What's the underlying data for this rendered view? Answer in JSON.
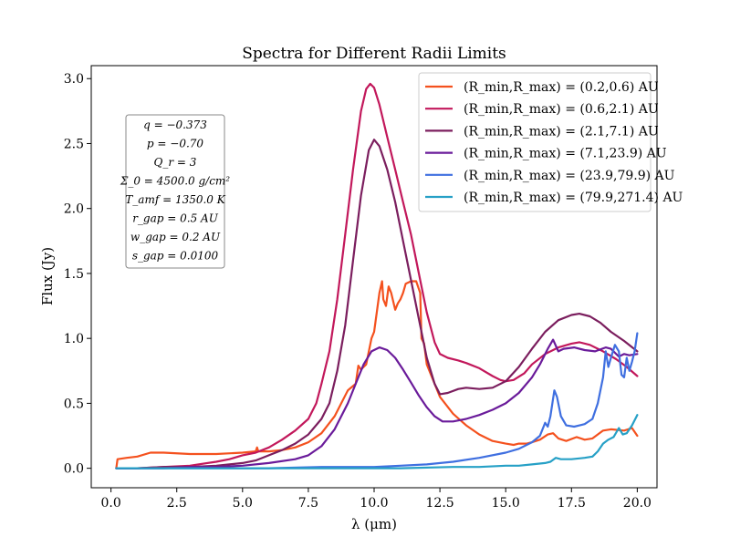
{
  "chart_data": {
    "type": "line",
    "title": "Spectra for Different Radii Limits",
    "xlabel": "λ (μm)",
    "ylabel": "Flux (Jy)",
    "xlim": [
      -0.75,
      20.75
    ],
    "ylim": [
      -0.15,
      3.1
    ],
    "xticks": [
      "0.0",
      "2.5",
      "5.0",
      "7.5",
      "10.0",
      "12.5",
      "15.0",
      "17.5",
      "20.0"
    ],
    "yticks": [
      "0.0",
      "0.5",
      "1.0",
      "1.5",
      "2.0",
      "2.5",
      "3.0"
    ],
    "grid": false,
    "legend_position": "top-right",
    "parameters": [
      "q = −0.373",
      "p = −0.70",
      "Q_r = 3",
      "Σ_0 = 4500.0 g/cm²",
      "T_amf = 1350.0 K",
      "r_gap = 0.5 AU",
      "w_gap = 0.2 AU",
      "s_gap = 0.0100"
    ],
    "series": [
      {
        "name": "(R_min,R_max) = (0.2,0.6) AU",
        "color": "#f4511e",
        "points": [
          [
            0.2,
            0.0
          ],
          [
            0.25,
            0.07
          ],
          [
            0.6,
            0.08
          ],
          [
            1.0,
            0.09
          ],
          [
            1.5,
            0.12
          ],
          [
            2.0,
            0.12
          ],
          [
            3.0,
            0.11
          ],
          [
            4.0,
            0.11
          ],
          [
            5.0,
            0.12
          ],
          [
            5.5,
            0.13
          ],
          [
            5.55,
            0.16
          ],
          [
            5.6,
            0.13
          ],
          [
            6.0,
            0.13
          ],
          [
            6.5,
            0.14
          ],
          [
            7.0,
            0.16
          ],
          [
            7.5,
            0.2
          ],
          [
            8.0,
            0.27
          ],
          [
            8.5,
            0.4
          ],
          [
            9.0,
            0.6
          ],
          [
            9.3,
            0.65
          ],
          [
            9.4,
            0.79
          ],
          [
            9.5,
            0.76
          ],
          [
            9.7,
            0.8
          ],
          [
            9.9,
            1.0
          ],
          [
            10.0,
            1.05
          ],
          [
            10.1,
            1.2
          ],
          [
            10.2,
            1.35
          ],
          [
            10.3,
            1.44
          ],
          [
            10.35,
            1.3
          ],
          [
            10.45,
            1.25
          ],
          [
            10.55,
            1.4
          ],
          [
            10.65,
            1.35
          ],
          [
            10.8,
            1.22
          ],
          [
            10.9,
            1.27
          ],
          [
            11.0,
            1.3
          ],
          [
            11.1,
            1.35
          ],
          [
            11.2,
            1.42
          ],
          [
            11.4,
            1.44
          ],
          [
            11.6,
            1.44
          ],
          [
            11.75,
            1.35
          ],
          [
            11.8,
            1.0
          ],
          [
            11.9,
            0.96
          ],
          [
            12.0,
            0.8
          ],
          [
            12.3,
            0.65
          ],
          [
            12.5,
            0.55
          ],
          [
            13.0,
            0.42
          ],
          [
            13.5,
            0.33
          ],
          [
            14.0,
            0.26
          ],
          [
            14.5,
            0.21
          ],
          [
            15.0,
            0.19
          ],
          [
            15.3,
            0.18
          ],
          [
            15.5,
            0.19
          ],
          [
            15.8,
            0.19
          ],
          [
            16.0,
            0.2
          ],
          [
            16.3,
            0.22
          ],
          [
            16.6,
            0.26
          ],
          [
            16.8,
            0.27
          ],
          [
            17.0,
            0.23
          ],
          [
            17.3,
            0.21
          ],
          [
            17.7,
            0.24
          ],
          [
            18.0,
            0.22
          ],
          [
            18.3,
            0.23
          ],
          [
            18.7,
            0.29
          ],
          [
            19.0,
            0.3
          ],
          [
            19.5,
            0.29
          ],
          [
            19.8,
            0.31
          ],
          [
            20.0,
            0.25
          ]
        ]
      },
      {
        "name": "(R_min,R_max) = (0.6,2.1) AU",
        "color": "#c2185b",
        "points": [
          [
            0.2,
            0.0
          ],
          [
            1.0,
            0.0
          ],
          [
            2.0,
            0.01
          ],
          [
            3.0,
            0.02
          ],
          [
            4.0,
            0.05
          ],
          [
            4.5,
            0.07
          ],
          [
            5.0,
            0.1
          ],
          [
            5.5,
            0.12
          ],
          [
            6.0,
            0.16
          ],
          [
            6.5,
            0.22
          ],
          [
            7.0,
            0.29
          ],
          [
            7.5,
            0.38
          ],
          [
            7.8,
            0.5
          ],
          [
            8.0,
            0.65
          ],
          [
            8.3,
            0.9
          ],
          [
            8.6,
            1.3
          ],
          [
            8.9,
            1.8
          ],
          [
            9.2,
            2.3
          ],
          [
            9.5,
            2.75
          ],
          [
            9.7,
            2.92
          ],
          [
            9.85,
            2.96
          ],
          [
            10.0,
            2.93
          ],
          [
            10.2,
            2.8
          ],
          [
            10.5,
            2.55
          ],
          [
            10.8,
            2.3
          ],
          [
            11.1,
            2.05
          ],
          [
            11.4,
            1.8
          ],
          [
            11.7,
            1.5
          ],
          [
            12.0,
            1.2
          ],
          [
            12.3,
            0.97
          ],
          [
            12.5,
            0.88
          ],
          [
            12.8,
            0.85
          ],
          [
            13.2,
            0.83
          ],
          [
            13.5,
            0.81
          ],
          [
            14.0,
            0.77
          ],
          [
            14.5,
            0.71
          ],
          [
            14.8,
            0.68
          ],
          [
            15.0,
            0.67
          ],
          [
            15.3,
            0.68
          ],
          [
            15.7,
            0.73
          ],
          [
            16.0,
            0.8
          ],
          [
            16.5,
            0.88
          ],
          [
            17.0,
            0.93
          ],
          [
            17.5,
            0.96
          ],
          [
            17.8,
            0.97
          ],
          [
            18.2,
            0.95
          ],
          [
            18.7,
            0.9
          ],
          [
            19.2,
            0.84
          ],
          [
            19.6,
            0.78
          ],
          [
            20.0,
            0.71
          ]
        ]
      },
      {
        "name": "(R_min,R_max) = (2.1,7.1) AU",
        "color": "#7b1e5e",
        "points": [
          [
            0.2,
            0.0
          ],
          [
            1.0,
            0.0
          ],
          [
            2.0,
            0.01
          ],
          [
            3.0,
            0.01
          ],
          [
            4.0,
            0.02
          ],
          [
            5.0,
            0.04
          ],
          [
            5.5,
            0.06
          ],
          [
            6.0,
            0.1
          ],
          [
            6.5,
            0.14
          ],
          [
            7.0,
            0.19
          ],
          [
            7.5,
            0.26
          ],
          [
            8.0,
            0.38
          ],
          [
            8.3,
            0.5
          ],
          [
            8.6,
            0.75
          ],
          [
            8.9,
            1.1
          ],
          [
            9.2,
            1.6
          ],
          [
            9.5,
            2.1
          ],
          [
            9.8,
            2.45
          ],
          [
            10.0,
            2.53
          ],
          [
            10.2,
            2.48
          ],
          [
            10.5,
            2.3
          ],
          [
            10.8,
            2.05
          ],
          [
            11.1,
            1.75
          ],
          [
            11.4,
            1.45
          ],
          [
            11.7,
            1.15
          ],
          [
            12.0,
            0.85
          ],
          [
            12.3,
            0.65
          ],
          [
            12.5,
            0.57
          ],
          [
            12.8,
            0.58
          ],
          [
            13.2,
            0.61
          ],
          [
            13.5,
            0.62
          ],
          [
            14.0,
            0.61
          ],
          [
            14.5,
            0.62
          ],
          [
            15.0,
            0.67
          ],
          [
            15.5,
            0.78
          ],
          [
            16.0,
            0.92
          ],
          [
            16.5,
            1.05
          ],
          [
            17.0,
            1.14
          ],
          [
            17.5,
            1.18
          ],
          [
            17.8,
            1.19
          ],
          [
            18.2,
            1.17
          ],
          [
            18.6,
            1.12
          ],
          [
            19.0,
            1.05
          ],
          [
            19.5,
            0.98
          ],
          [
            20.0,
            0.9
          ]
        ]
      },
      {
        "name": "(R_min,R_max) = (7.1,23.9) AU",
        "color": "#6a1b9a",
        "points": [
          [
            0.2,
            0.0
          ],
          [
            1.0,
            0.0
          ],
          [
            2.0,
            0.0
          ],
          [
            3.0,
            0.01
          ],
          [
            4.0,
            0.01
          ],
          [
            5.0,
            0.02
          ],
          [
            6.0,
            0.04
          ],
          [
            7.0,
            0.07
          ],
          [
            7.5,
            0.1
          ],
          [
            8.0,
            0.17
          ],
          [
            8.5,
            0.3
          ],
          [
            9.0,
            0.5
          ],
          [
            9.3,
            0.65
          ],
          [
            9.6,
            0.8
          ],
          [
            9.9,
            0.9
          ],
          [
            10.2,
            0.93
          ],
          [
            10.5,
            0.91
          ],
          [
            10.8,
            0.85
          ],
          [
            11.1,
            0.76
          ],
          [
            11.4,
            0.66
          ],
          [
            11.7,
            0.56
          ],
          [
            12.0,
            0.47
          ],
          [
            12.3,
            0.4
          ],
          [
            12.6,
            0.36
          ],
          [
            13.0,
            0.36
          ],
          [
            13.5,
            0.38
          ],
          [
            14.0,
            0.41
          ],
          [
            14.5,
            0.45
          ],
          [
            15.0,
            0.5
          ],
          [
            15.5,
            0.58
          ],
          [
            16.0,
            0.7
          ],
          [
            16.3,
            0.8
          ],
          [
            16.6,
            0.92
          ],
          [
            16.8,
            0.99
          ],
          [
            17.0,
            0.9
          ],
          [
            17.2,
            0.92
          ],
          [
            17.6,
            0.93
          ],
          [
            18.0,
            0.91
          ],
          [
            18.4,
            0.9
          ],
          [
            18.8,
            0.93
          ],
          [
            19.0,
            0.92
          ],
          [
            19.3,
            0.86
          ],
          [
            19.5,
            0.88
          ],
          [
            19.7,
            0.87
          ],
          [
            20.0,
            0.88
          ]
        ]
      },
      {
        "name": "(R_min,R_max) = (23.9,79.9) AU",
        "color": "#3f6fe0",
        "points": [
          [
            0.2,
            0.0
          ],
          [
            2.0,
            0.0
          ],
          [
            4.0,
            0.0
          ],
          [
            6.0,
            0.0
          ],
          [
            8.0,
            0.01
          ],
          [
            10.0,
            0.01
          ],
          [
            11.0,
            0.02
          ],
          [
            12.0,
            0.03
          ],
          [
            13.0,
            0.05
          ],
          [
            14.0,
            0.08
          ],
          [
            15.0,
            0.12
          ],
          [
            15.5,
            0.15
          ],
          [
            16.0,
            0.2
          ],
          [
            16.3,
            0.25
          ],
          [
            16.5,
            0.35
          ],
          [
            16.6,
            0.32
          ],
          [
            16.7,
            0.4
          ],
          [
            16.85,
            0.6
          ],
          [
            16.95,
            0.55
          ],
          [
            17.1,
            0.4
          ],
          [
            17.3,
            0.33
          ],
          [
            17.6,
            0.32
          ],
          [
            18.0,
            0.34
          ],
          [
            18.3,
            0.38
          ],
          [
            18.5,
            0.5
          ],
          [
            18.7,
            0.7
          ],
          [
            18.8,
            0.9
          ],
          [
            18.9,
            0.78
          ],
          [
            19.0,
            0.85
          ],
          [
            19.15,
            0.95
          ],
          [
            19.3,
            0.9
          ],
          [
            19.4,
            0.72
          ],
          [
            19.5,
            0.7
          ],
          [
            19.6,
            0.85
          ],
          [
            19.7,
            0.75
          ],
          [
            19.8,
            0.82
          ],
          [
            19.9,
            0.9
          ],
          [
            20.0,
            1.04
          ]
        ]
      },
      {
        "name": "(R_min,R_max) = (79.9,271.4) AU",
        "color": "#26a0c6",
        "points": [
          [
            0.2,
            0.0
          ],
          [
            3.0,
            0.0
          ],
          [
            6.0,
            0.0
          ],
          [
            9.0,
            0.0
          ],
          [
            11.0,
            0.0
          ],
          [
            13.0,
            0.01
          ],
          [
            14.0,
            0.01
          ],
          [
            15.0,
            0.02
          ],
          [
            15.5,
            0.02
          ],
          [
            16.0,
            0.03
          ],
          [
            16.5,
            0.04
          ],
          [
            16.7,
            0.05
          ],
          [
            16.9,
            0.08
          ],
          [
            17.1,
            0.07
          ],
          [
            17.5,
            0.07
          ],
          [
            18.0,
            0.08
          ],
          [
            18.3,
            0.09
          ],
          [
            18.5,
            0.13
          ],
          [
            18.7,
            0.19
          ],
          [
            18.9,
            0.22
          ],
          [
            19.1,
            0.24
          ],
          [
            19.3,
            0.31
          ],
          [
            19.45,
            0.26
          ],
          [
            19.6,
            0.27
          ],
          [
            19.8,
            0.33
          ],
          [
            20.0,
            0.41
          ]
        ]
      }
    ]
  }
}
